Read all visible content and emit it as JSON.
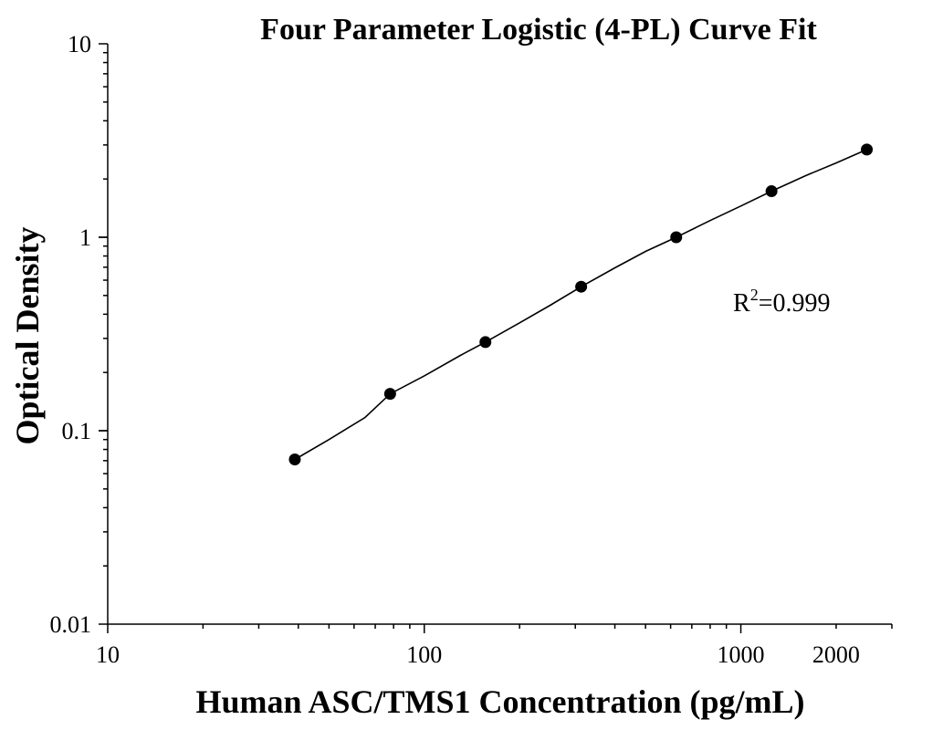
{
  "chart_data": {
    "type": "scatter",
    "title": "Four Parameter Logistic (4-PL) Curve Fit",
    "xlabel": "Human ASC/TMS1 Concentration (pg/mL)",
    "ylabel": "Optical Density",
    "x_scale": "log",
    "y_scale": "log",
    "xlim": [
      10,
      3000
    ],
    "ylim": [
      0.01,
      10
    ],
    "x_ticks": [
      {
        "value": 10,
        "label": "10"
      },
      {
        "value": 100,
        "label": "100"
      },
      {
        "value": 1000,
        "label": "1000"
      },
      {
        "value": 2000,
        "label": "2000"
      }
    ],
    "y_ticks": [
      {
        "value": 0.01,
        "label": "0.01"
      },
      {
        "value": 0.1,
        "label": "0.1"
      },
      {
        "value": 1,
        "label": "1"
      },
      {
        "value": 10,
        "label": "10"
      }
    ],
    "series": [
      {
        "type": "scatter",
        "color": "#000000",
        "points": [
          {
            "x": 39,
            "y": 0.071
          },
          {
            "x": 78,
            "y": 0.155
          },
          {
            "x": 156,
            "y": 0.287
          },
          {
            "x": 313,
            "y": 0.555
          },
          {
            "x": 625,
            "y": 1.0
          },
          {
            "x": 1250,
            "y": 1.73
          },
          {
            "x": 2500,
            "y": 2.84
          }
        ]
      },
      {
        "type": "line",
        "color": "#000000",
        "x": [
          39,
          50,
          65,
          78,
          100,
          130,
          156,
          200,
          250,
          313,
          400,
          500,
          625,
          800,
          1000,
          1250,
          1600,
          2000,
          2500
        ],
        "y": [
          0.071,
          0.09,
          0.117,
          0.155,
          0.192,
          0.245,
          0.287,
          0.361,
          0.445,
          0.555,
          0.695,
          0.845,
          1.0,
          1.22,
          1.45,
          1.73,
          2.08,
          2.42,
          2.84
        ]
      }
    ],
    "annotations": {
      "r2_prefix": "R",
      "r2_sup": "2",
      "r2_value": "=0.999"
    },
    "grid": false
  }
}
